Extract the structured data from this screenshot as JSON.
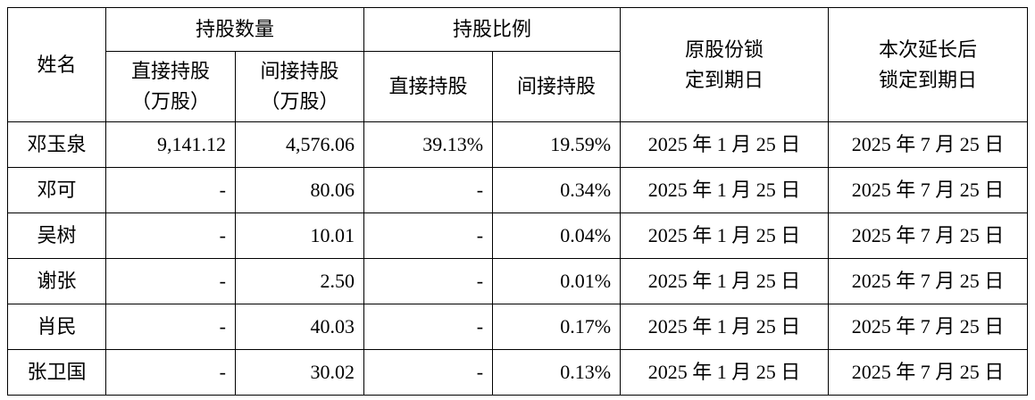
{
  "table": {
    "header": {
      "name": "姓名",
      "holding_qty": "持股数量",
      "holding_ratio": "持股比例",
      "sub": [
        [
          "直接持股",
          "（万股）"
        ],
        [
          "间接持股",
          "（万股）"
        ],
        [
          "直接持股"
        ],
        [
          "间接持股"
        ]
      ],
      "orig_lock": [
        "原股份锁",
        "定到期日"
      ],
      "new_lock": [
        "本次延长后",
        "锁定到期日"
      ]
    },
    "rows": [
      [
        "邓玉泉",
        "9,141.12",
        "4,576.06",
        "39.13%",
        "19.59%",
        "2025 年 1 月 25 日",
        "2025 年 7 月 25 日"
      ],
      [
        "邓可",
        "-",
        "80.06",
        "-",
        "0.34%",
        "2025 年 1 月 25 日",
        "2025 年 7 月 25 日"
      ],
      [
        "吴树",
        "-",
        "10.01",
        "-",
        "0.04%",
        "2025 年 1 月 25 日",
        "2025 年 7 月 25 日"
      ],
      [
        "谢张",
        "-",
        "2.50",
        "-",
        "0.01%",
        "2025 年 1 月 25 日",
        "2025 年 7 月 25 日"
      ],
      [
        "肖民",
        "-",
        "40.03",
        "-",
        "0.17%",
        "2025 年 1 月 25 日",
        "2025 年 7 月 25 日"
      ],
      [
        "张卫国",
        "-",
        "30.02",
        "-",
        "0.13%",
        "2025 年 1 月 25 日",
        "2025 年 7 月 25 日"
      ]
    ]
  }
}
